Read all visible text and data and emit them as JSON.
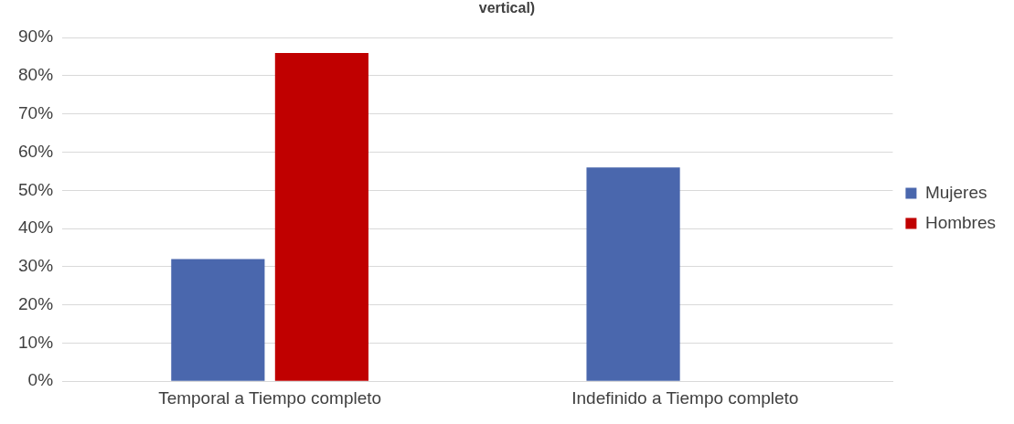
{
  "chart_data": {
    "type": "bar",
    "title": "vertical)",
    "categories": [
      "Temporal a Tiempo completo",
      "Indefinido a Tiempo completo"
    ],
    "series": [
      {
        "name": "Mujeres",
        "color": "#4a67ad",
        "values": [
          32,
          56
        ]
      },
      {
        "name": "Hombres",
        "color": "#c00000",
        "values": [
          86,
          0
        ]
      }
    ],
    "ylim": [
      0,
      90
    ],
    "yticks": [
      {
        "value": 0,
        "label": "0%"
      },
      {
        "value": 10,
        "label": "10%"
      },
      {
        "value": 20,
        "label": "20%"
      },
      {
        "value": 30,
        "label": "30%"
      },
      {
        "value": 40,
        "label": "40%"
      },
      {
        "value": 50,
        "label": "50%"
      },
      {
        "value": 60,
        "label": "60%"
      },
      {
        "value": 70,
        "label": "70%"
      },
      {
        "value": 80,
        "label": "80%"
      },
      {
        "value": 90,
        "label": "90%"
      }
    ],
    "grid": "y",
    "legend": "right"
  }
}
